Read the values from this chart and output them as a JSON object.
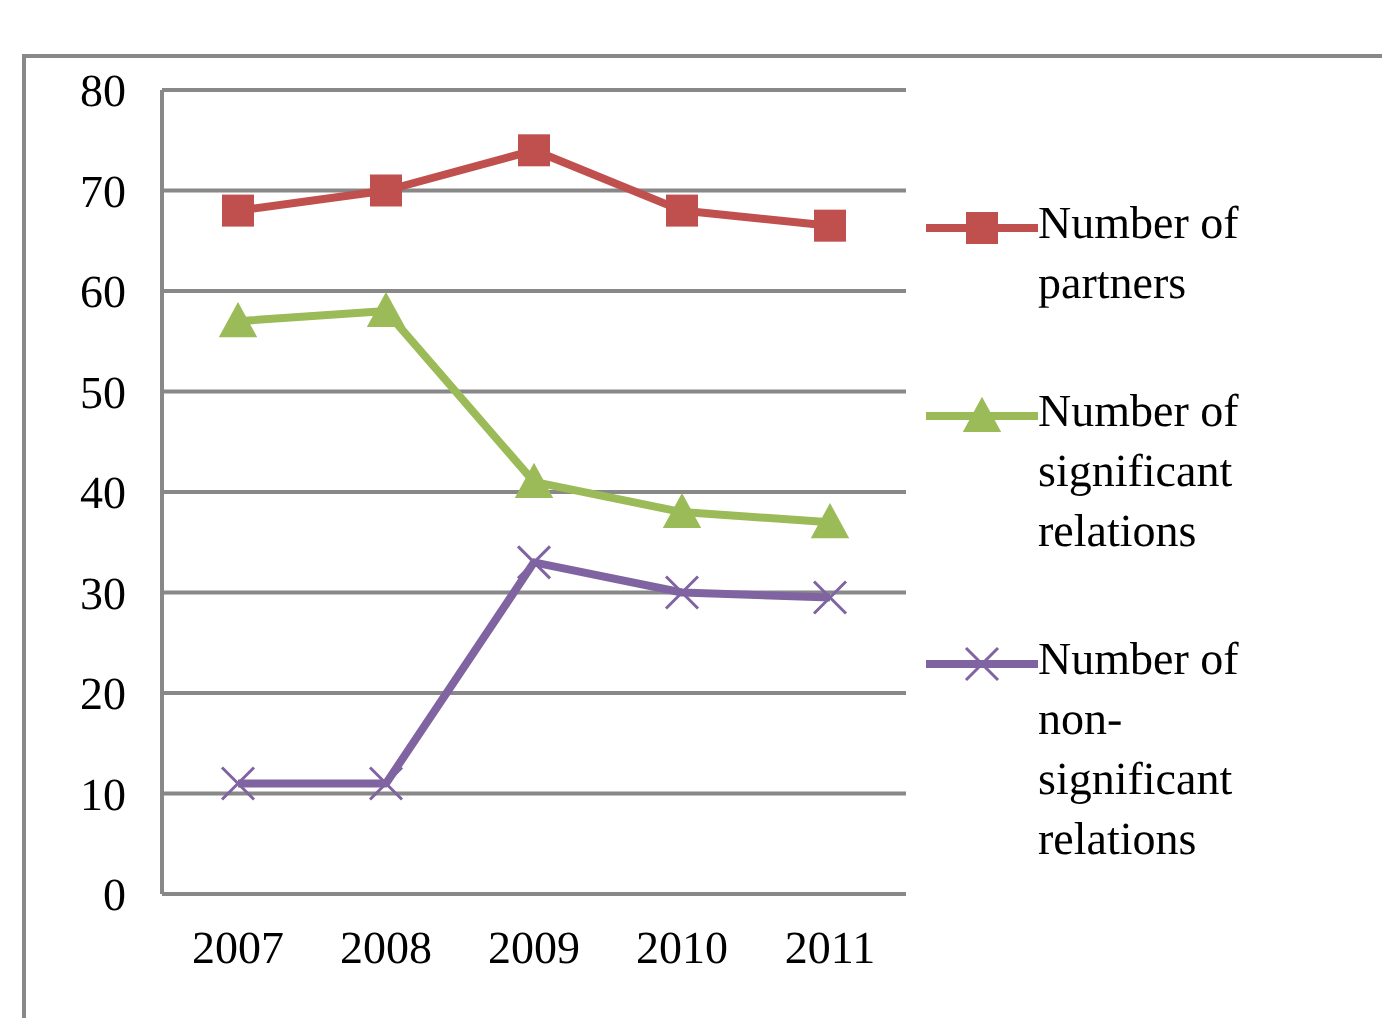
{
  "chart_data": {
    "type": "line",
    "categories": [
      "2007",
      "2008",
      "2009",
      "2010",
      "2011"
    ],
    "series": [
      {
        "name": "Number of partners",
        "color": "#c0504d",
        "marker": "square",
        "values": [
          68,
          70,
          74,
          68,
          66.5
        ]
      },
      {
        "name": "Number of significant relations",
        "color": "#9bbb59",
        "marker": "triangle",
        "values": [
          57,
          58,
          41,
          38,
          37
        ]
      },
      {
        "name": "Number of non-significant relations",
        "color": "#8064a2",
        "marker": "cross",
        "values": [
          11,
          11,
          33,
          30,
          29.5
        ]
      }
    ],
    "ylim": [
      0,
      80
    ],
    "yticks": [
      0,
      10,
      20,
      30,
      40,
      50,
      60,
      70,
      80
    ],
    "grid": "y",
    "legend": "right"
  }
}
